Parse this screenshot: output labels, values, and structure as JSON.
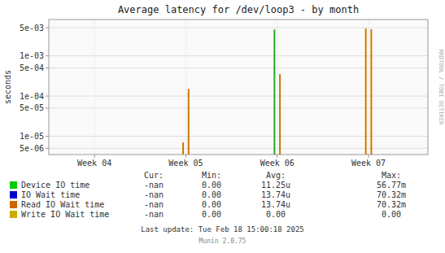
{
  "chart_data": {
    "type": "spike",
    "title": "Average latency for /dev/loop3 - by month",
    "y_label": "seconds",
    "x": [
      1.97,
      2.03,
      2.97,
      3.03,
      3.97,
      4.03
    ],
    "values": [
      7e-06,
      0.00015,
      0.0045,
      0.00035,
      0.0048,
      0.0046
    ],
    "colors": [
      "#cc7700",
      "#cc7700",
      "#22aa22",
      "#cc7700",
      "#cc7700",
      "#cc7700"
    ],
    "xlim": [
      0.5,
      4.65
    ],
    "xticks": [
      {
        "value": 1,
        "label": "Week 04"
      },
      {
        "value": 2,
        "label": "Week 05"
      },
      {
        "value": 3,
        "label": "Week 06"
      },
      {
        "value": 4,
        "label": "Week 07"
      }
    ],
    "ylim": [
      3.5e-06,
      0.008
    ],
    "yticks": [
      {
        "value": 5e-06,
        "label": "5e-06"
      },
      {
        "value": 1e-05,
        "label": "1e-05"
      },
      {
        "value": 5e-05,
        "label": "5e-05"
      },
      {
        "value": 0.0001,
        "label": "1e-04"
      },
      {
        "value": 0.0005,
        "label": "5e-04"
      },
      {
        "value": 0.001,
        "label": "1e-03"
      },
      {
        "value": 0.005,
        "label": "5e-03"
      }
    ],
    "log": "y",
    "grid": true,
    "legend": "bottom",
    "legend_table": {
      "headers": [
        "Cur:",
        "Min:",
        "Avg:",
        "Max:"
      ],
      "rows": [
        {
          "name": "Device IO time",
          "color": "#00cc00",
          "values": [
            "-nan",
            "0.00",
            "11.25u",
            "56.77m"
          ]
        },
        {
          "name": "IO Wait time",
          "color": "#0000cc",
          "values": [
            "-nan",
            "0.00",
            "13.74u",
            "70.32m"
          ]
        },
        {
          "name": "Read IO Wait time",
          "color": "#cc6600",
          "values": [
            "-nan",
            "0.00",
            "13.74u",
            "70.32m"
          ]
        },
        {
          "name": "Write IO Wait time",
          "color": "#ccaa00",
          "values": [
            "-nan",
            "0.00",
            "0.00",
            "0.00"
          ]
        }
      ]
    },
    "annotations": [
      "Last update: Tue Feb 18 15:00:18 2025",
      "Munin 2.0.75",
      "RRDTOOL / TOBI OETIKER"
    ]
  }
}
